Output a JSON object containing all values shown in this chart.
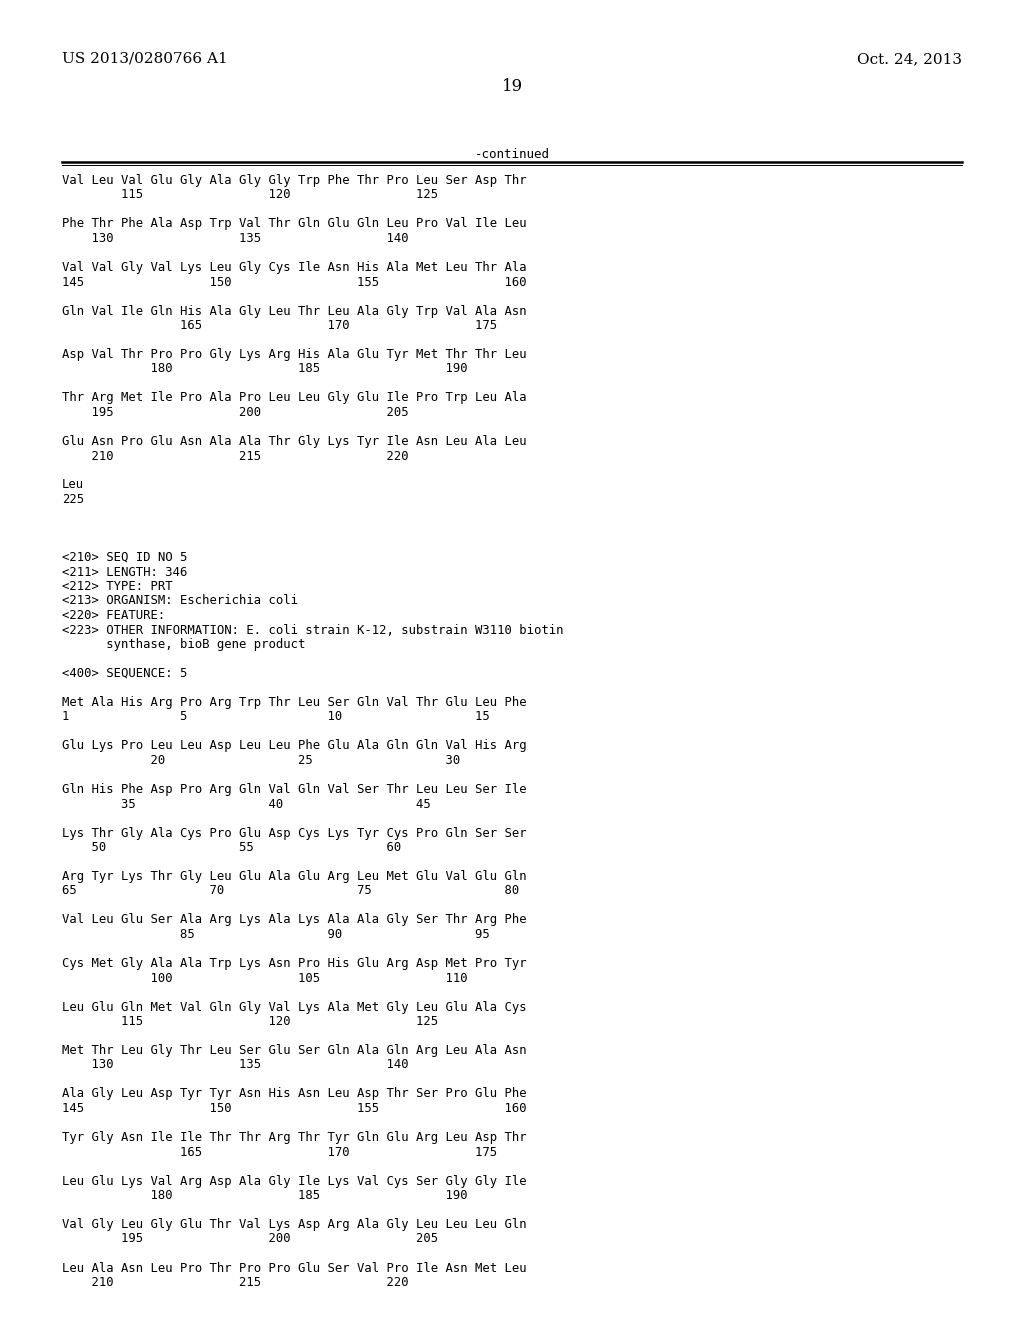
{
  "background_color": "#ffffff",
  "header_left": "US 2013/0280766 A1",
  "header_right": "Oct. 24, 2013",
  "page_number": "19",
  "continued_label": "-continued",
  "lines": [
    "Val Leu Val Glu Gly Ala Gly Gly Trp Phe Thr Pro Leu Ser Asp Thr",
    "        115                 120                 125",
    "",
    "Phe Thr Phe Ala Asp Trp Val Thr Gln Glu Gln Leu Pro Val Ile Leu",
    "    130                 135                 140",
    "",
    "Val Val Gly Val Lys Leu Gly Cys Ile Asn His Ala Met Leu Thr Ala",
    "145                 150                 155                 160",
    "",
    "Gln Val Ile Gln His Ala Gly Leu Thr Leu Ala Gly Trp Val Ala Asn",
    "                165                 170                 175",
    "",
    "Asp Val Thr Pro Pro Gly Lys Arg His Ala Glu Tyr Met Thr Thr Leu",
    "            180                 185                 190",
    "",
    "Thr Arg Met Ile Pro Ala Pro Leu Leu Gly Glu Ile Pro Trp Leu Ala",
    "    195                 200                 205",
    "",
    "Glu Asn Pro Glu Asn Ala Ala Thr Gly Lys Tyr Ile Asn Leu Ala Leu",
    "    210                 215                 220",
    "",
    "Leu",
    "225",
    "",
    "",
    "",
    "<210> SEQ ID NO 5",
    "<211> LENGTH: 346",
    "<212> TYPE: PRT",
    "<213> ORGANISM: Escherichia coli",
    "<220> FEATURE:",
    "<223> OTHER INFORMATION: E. coli strain K-12, substrain W3110 biotin",
    "      synthase, bioB gene product",
    "",
    "<400> SEQUENCE: 5",
    "",
    "Met Ala His Arg Pro Arg Trp Thr Leu Ser Gln Val Thr Glu Leu Phe",
    "1               5                   10                  15",
    "",
    "Glu Lys Pro Leu Leu Asp Leu Leu Phe Glu Ala Gln Gln Val His Arg",
    "            20                  25                  30",
    "",
    "Gln His Phe Asp Pro Arg Gln Val Gln Val Ser Thr Leu Leu Ser Ile",
    "        35                  40                  45",
    "",
    "Lys Thr Gly Ala Cys Pro Glu Asp Cys Lys Tyr Cys Pro Gln Ser Ser",
    "    50                  55                  60",
    "",
    "Arg Tyr Lys Thr Gly Leu Glu Ala Glu Arg Leu Met Glu Val Glu Gln",
    "65                  70                  75                  80",
    "",
    "Val Leu Glu Ser Ala Arg Lys Ala Lys Ala Ala Gly Ser Thr Arg Phe",
    "                85                  90                  95",
    "",
    "Cys Met Gly Ala Ala Trp Lys Asn Pro His Glu Arg Asp Met Pro Tyr",
    "            100                 105                 110",
    "",
    "Leu Glu Gln Met Val Gln Gly Val Lys Ala Met Gly Leu Glu Ala Cys",
    "        115                 120                 125",
    "",
    "Met Thr Leu Gly Thr Leu Ser Glu Ser Gln Ala Gln Arg Leu Ala Asn",
    "    130                 135                 140",
    "",
    "Ala Gly Leu Asp Tyr Tyr Asn His Asn Leu Asp Thr Ser Pro Glu Phe",
    "145                 150                 155                 160",
    "",
    "Tyr Gly Asn Ile Ile Thr Thr Arg Thr Tyr Gln Glu Arg Leu Asp Thr",
    "                165                 170                 175",
    "",
    "Leu Glu Lys Val Arg Asp Ala Gly Ile Lys Val Cys Ser Gly Gly Ile",
    "            180                 185                 190",
    "",
    "Val Gly Leu Gly Glu Thr Val Lys Asp Arg Ala Gly Leu Leu Leu Gln",
    "        195                 200                 205",
    "",
    "Leu Ala Asn Leu Pro Thr Pro Pro Glu Ser Val Pro Ile Asn Met Leu",
    "    210                 215                 220"
  ]
}
